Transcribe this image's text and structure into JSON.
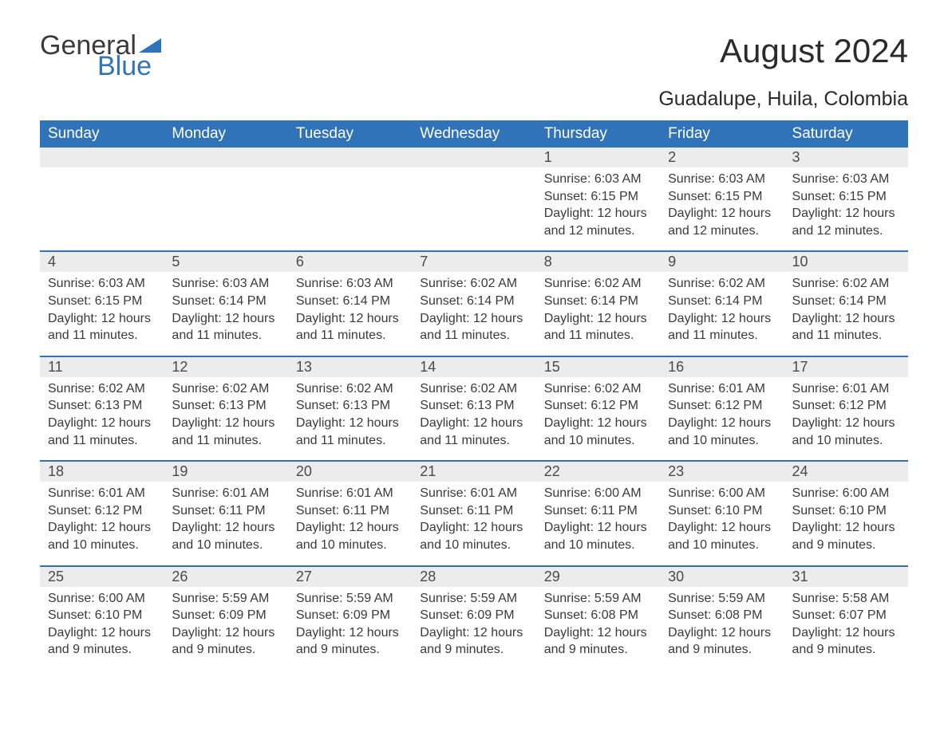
{
  "logo": {
    "text1": "General",
    "text2": "Blue",
    "flag_color": "#3173b8"
  },
  "title": "August 2024",
  "location": "Guadalupe, Huila, Colombia",
  "colors": {
    "header_bg": "#3173b8",
    "header_text": "#ffffff",
    "daynum_bg": "#ececec",
    "text": "#3a3a3a",
    "row_border": "#3173b8",
    "background": "#ffffff"
  },
  "fonts": {
    "title_pt": 42,
    "location_pt": 25,
    "weekday_pt": 19,
    "body_pt": 16,
    "daynum_pt": 18
  },
  "weekdays": [
    "Sunday",
    "Monday",
    "Tuesday",
    "Wednesday",
    "Thursday",
    "Friday",
    "Saturday"
  ],
  "weeks": [
    [
      null,
      null,
      null,
      null,
      {
        "n": "1",
        "sr": "Sunrise: 6:03 AM",
        "ss": "Sunset: 6:15 PM",
        "d1": "Daylight: 12 hours",
        "d2": "and 12 minutes."
      },
      {
        "n": "2",
        "sr": "Sunrise: 6:03 AM",
        "ss": "Sunset: 6:15 PM",
        "d1": "Daylight: 12 hours",
        "d2": "and 12 minutes."
      },
      {
        "n": "3",
        "sr": "Sunrise: 6:03 AM",
        "ss": "Sunset: 6:15 PM",
        "d1": "Daylight: 12 hours",
        "d2": "and 12 minutes."
      }
    ],
    [
      {
        "n": "4",
        "sr": "Sunrise: 6:03 AM",
        "ss": "Sunset: 6:15 PM",
        "d1": "Daylight: 12 hours",
        "d2": "and 11 minutes."
      },
      {
        "n": "5",
        "sr": "Sunrise: 6:03 AM",
        "ss": "Sunset: 6:14 PM",
        "d1": "Daylight: 12 hours",
        "d2": "and 11 minutes."
      },
      {
        "n": "6",
        "sr": "Sunrise: 6:03 AM",
        "ss": "Sunset: 6:14 PM",
        "d1": "Daylight: 12 hours",
        "d2": "and 11 minutes."
      },
      {
        "n": "7",
        "sr": "Sunrise: 6:02 AM",
        "ss": "Sunset: 6:14 PM",
        "d1": "Daylight: 12 hours",
        "d2": "and 11 minutes."
      },
      {
        "n": "8",
        "sr": "Sunrise: 6:02 AM",
        "ss": "Sunset: 6:14 PM",
        "d1": "Daylight: 12 hours",
        "d2": "and 11 minutes."
      },
      {
        "n": "9",
        "sr": "Sunrise: 6:02 AM",
        "ss": "Sunset: 6:14 PM",
        "d1": "Daylight: 12 hours",
        "d2": "and 11 minutes."
      },
      {
        "n": "10",
        "sr": "Sunrise: 6:02 AM",
        "ss": "Sunset: 6:14 PM",
        "d1": "Daylight: 12 hours",
        "d2": "and 11 minutes."
      }
    ],
    [
      {
        "n": "11",
        "sr": "Sunrise: 6:02 AM",
        "ss": "Sunset: 6:13 PM",
        "d1": "Daylight: 12 hours",
        "d2": "and 11 minutes."
      },
      {
        "n": "12",
        "sr": "Sunrise: 6:02 AM",
        "ss": "Sunset: 6:13 PM",
        "d1": "Daylight: 12 hours",
        "d2": "and 11 minutes."
      },
      {
        "n": "13",
        "sr": "Sunrise: 6:02 AM",
        "ss": "Sunset: 6:13 PM",
        "d1": "Daylight: 12 hours",
        "d2": "and 11 minutes."
      },
      {
        "n": "14",
        "sr": "Sunrise: 6:02 AM",
        "ss": "Sunset: 6:13 PM",
        "d1": "Daylight: 12 hours",
        "d2": "and 11 minutes."
      },
      {
        "n": "15",
        "sr": "Sunrise: 6:02 AM",
        "ss": "Sunset: 6:12 PM",
        "d1": "Daylight: 12 hours",
        "d2": "and 10 minutes."
      },
      {
        "n": "16",
        "sr": "Sunrise: 6:01 AM",
        "ss": "Sunset: 6:12 PM",
        "d1": "Daylight: 12 hours",
        "d2": "and 10 minutes."
      },
      {
        "n": "17",
        "sr": "Sunrise: 6:01 AM",
        "ss": "Sunset: 6:12 PM",
        "d1": "Daylight: 12 hours",
        "d2": "and 10 minutes."
      }
    ],
    [
      {
        "n": "18",
        "sr": "Sunrise: 6:01 AM",
        "ss": "Sunset: 6:12 PM",
        "d1": "Daylight: 12 hours",
        "d2": "and 10 minutes."
      },
      {
        "n": "19",
        "sr": "Sunrise: 6:01 AM",
        "ss": "Sunset: 6:11 PM",
        "d1": "Daylight: 12 hours",
        "d2": "and 10 minutes."
      },
      {
        "n": "20",
        "sr": "Sunrise: 6:01 AM",
        "ss": "Sunset: 6:11 PM",
        "d1": "Daylight: 12 hours",
        "d2": "and 10 minutes."
      },
      {
        "n": "21",
        "sr": "Sunrise: 6:01 AM",
        "ss": "Sunset: 6:11 PM",
        "d1": "Daylight: 12 hours",
        "d2": "and 10 minutes."
      },
      {
        "n": "22",
        "sr": "Sunrise: 6:00 AM",
        "ss": "Sunset: 6:11 PM",
        "d1": "Daylight: 12 hours",
        "d2": "and 10 minutes."
      },
      {
        "n": "23",
        "sr": "Sunrise: 6:00 AM",
        "ss": "Sunset: 6:10 PM",
        "d1": "Daylight: 12 hours",
        "d2": "and 10 minutes."
      },
      {
        "n": "24",
        "sr": "Sunrise: 6:00 AM",
        "ss": "Sunset: 6:10 PM",
        "d1": "Daylight: 12 hours",
        "d2": "and 9 minutes."
      }
    ],
    [
      {
        "n": "25",
        "sr": "Sunrise: 6:00 AM",
        "ss": "Sunset: 6:10 PM",
        "d1": "Daylight: 12 hours",
        "d2": "and 9 minutes."
      },
      {
        "n": "26",
        "sr": "Sunrise: 5:59 AM",
        "ss": "Sunset: 6:09 PM",
        "d1": "Daylight: 12 hours",
        "d2": "and 9 minutes."
      },
      {
        "n": "27",
        "sr": "Sunrise: 5:59 AM",
        "ss": "Sunset: 6:09 PM",
        "d1": "Daylight: 12 hours",
        "d2": "and 9 minutes."
      },
      {
        "n": "28",
        "sr": "Sunrise: 5:59 AM",
        "ss": "Sunset: 6:09 PM",
        "d1": "Daylight: 12 hours",
        "d2": "and 9 minutes."
      },
      {
        "n": "29",
        "sr": "Sunrise: 5:59 AM",
        "ss": "Sunset: 6:08 PM",
        "d1": "Daylight: 12 hours",
        "d2": "and 9 minutes."
      },
      {
        "n": "30",
        "sr": "Sunrise: 5:59 AM",
        "ss": "Sunset: 6:08 PM",
        "d1": "Daylight: 12 hours",
        "d2": "and 9 minutes."
      },
      {
        "n": "31",
        "sr": "Sunrise: 5:58 AM",
        "ss": "Sunset: 6:07 PM",
        "d1": "Daylight: 12 hours",
        "d2": "and 9 minutes."
      }
    ]
  ]
}
